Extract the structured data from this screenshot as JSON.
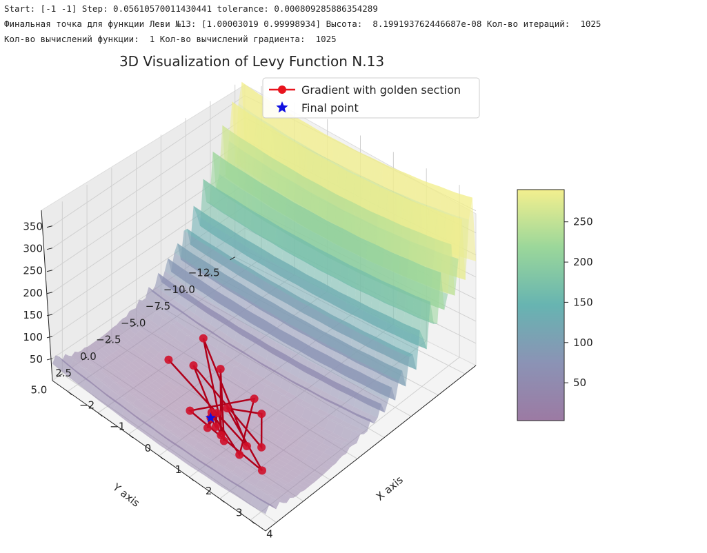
{
  "console_log": {
    "line1": "Start: [-1 -1] Step: 0.05610570011430441 tolerance: 0.000809285886354289",
    "line2": "Финальная точка для функции Леви №13: [1.00003019 0.99998934] Высота:  8.199193762446687e-08 Кол-во итераций:  1025",
    "line3": "Кол-во вычислений функции:  1 Кол-во вычислений градиента:  1025"
  },
  "chart_data": {
    "type": "surface3d",
    "title": "3D Visualization of Levy Function N.13",
    "xlabel": "X axis",
    "ylabel": "Y axis",
    "zlabel": "",
    "x_ticks": [
      "−2",
      "−1",
      "0",
      "1",
      "2",
      "3",
      "4"
    ],
    "y_ticks": [
      "−12.5",
      "−10.0",
      "−7.5",
      "−5.0",
      "−2.5",
      "0.0",
      "2.5",
      "5.0"
    ],
    "z_ticks": [
      "50",
      "100",
      "150",
      "200",
      "250",
      "300",
      "350"
    ],
    "xlim": [
      -2.5,
      4.5
    ],
    "ylim": [
      -13.5,
      6
    ],
    "zlim": [
      0,
      390
    ],
    "colormap": "viridis",
    "surface_alpha": 0.55,
    "colorbar": {
      "ticks": [
        "50",
        "100",
        "150",
        "200",
        "250"
      ],
      "range": [
        3,
        290
      ]
    },
    "legend": {
      "placement": "top",
      "entries": [
        {
          "label": "Gradient with golden section",
          "color": "#e8141e",
          "marker": "circle"
        },
        {
          "label": "Final point",
          "color": "#1010e0",
          "marker": "star"
        }
      ]
    },
    "start_point": [
      -1,
      -1
    ],
    "final_point": [
      1.00003019,
      0.99998934,
      8.199193762446687e-08
    ],
    "iterations": 1025,
    "gradient_path_sample": [
      [
        -1.0,
        -1.0
      ],
      [
        2.3,
        1.4
      ],
      [
        -0.6,
        -3.2
      ],
      [
        1.8,
        2.1
      ],
      [
        0.2,
        -2.4
      ],
      [
        1.6,
        1.8
      ],
      [
        -0.4,
        -1.6
      ],
      [
        2.6,
        0.9
      ],
      [
        1.9,
        -1.2
      ],
      [
        1.1,
        -0.3
      ],
      [
        3.2,
        2.6
      ],
      [
        0.5,
        1.5
      ],
      [
        1.4,
        -2.0
      ],
      [
        2.4,
        2.4
      ],
      [
        0.9,
        0.6
      ],
      [
        1.2,
        1.9
      ],
      [
        1.0,
        0.4
      ],
      [
        1.3,
        1.4
      ],
      [
        1.0,
        1.0
      ]
    ]
  }
}
